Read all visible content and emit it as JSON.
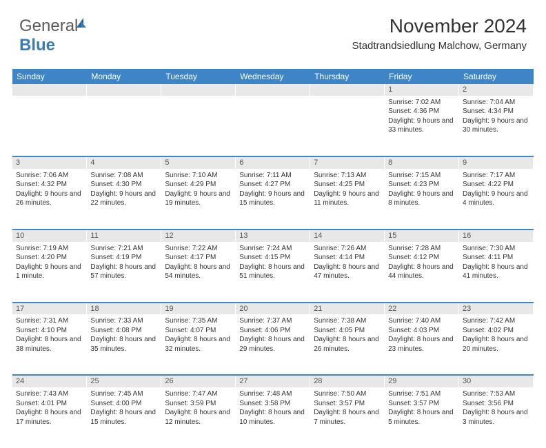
{
  "logo": {
    "part1": "General",
    "part2": "Blue"
  },
  "title": "November 2024",
  "location": "Stadtrandsiedlung Malchow, Germany",
  "colors": {
    "header_bg": "#3d85c6",
    "header_text": "#ffffff",
    "daynum_bg": "#e8e8e8",
    "row_border": "#3d85c6",
    "text": "#333333",
    "logo_gray": "#5a5a5a",
    "logo_blue": "#3a7ab8"
  },
  "weekdays": [
    "Sunday",
    "Monday",
    "Tuesday",
    "Wednesday",
    "Thursday",
    "Friday",
    "Saturday"
  ],
  "weeks": [
    {
      "nums": [
        "",
        "",
        "",
        "",
        "",
        "1",
        "2"
      ],
      "cells": [
        "",
        "",
        "",
        "",
        "",
        "Sunrise: 7:02 AM\nSunset: 4:36 PM\nDaylight: 9 hours and 33 minutes.",
        "Sunrise: 7:04 AM\nSunset: 4:34 PM\nDaylight: 9 hours and 30 minutes."
      ]
    },
    {
      "nums": [
        "3",
        "4",
        "5",
        "6",
        "7",
        "8",
        "9"
      ],
      "cells": [
        "Sunrise: 7:06 AM\nSunset: 4:32 PM\nDaylight: 9 hours and 26 minutes.",
        "Sunrise: 7:08 AM\nSunset: 4:30 PM\nDaylight: 9 hours and 22 minutes.",
        "Sunrise: 7:10 AM\nSunset: 4:29 PM\nDaylight: 9 hours and 19 minutes.",
        "Sunrise: 7:11 AM\nSunset: 4:27 PM\nDaylight: 9 hours and 15 minutes.",
        "Sunrise: 7:13 AM\nSunset: 4:25 PM\nDaylight: 9 hours and 11 minutes.",
        "Sunrise: 7:15 AM\nSunset: 4:23 PM\nDaylight: 9 hours and 8 minutes.",
        "Sunrise: 7:17 AM\nSunset: 4:22 PM\nDaylight: 9 hours and 4 minutes."
      ]
    },
    {
      "nums": [
        "10",
        "11",
        "12",
        "13",
        "14",
        "15",
        "16"
      ],
      "cells": [
        "Sunrise: 7:19 AM\nSunset: 4:20 PM\nDaylight: 9 hours and 1 minute.",
        "Sunrise: 7:21 AM\nSunset: 4:19 PM\nDaylight: 8 hours and 57 minutes.",
        "Sunrise: 7:22 AM\nSunset: 4:17 PM\nDaylight: 8 hours and 54 minutes.",
        "Sunrise: 7:24 AM\nSunset: 4:15 PM\nDaylight: 8 hours and 51 minutes.",
        "Sunrise: 7:26 AM\nSunset: 4:14 PM\nDaylight: 8 hours and 47 minutes.",
        "Sunrise: 7:28 AM\nSunset: 4:12 PM\nDaylight: 8 hours and 44 minutes.",
        "Sunrise: 7:30 AM\nSunset: 4:11 PM\nDaylight: 8 hours and 41 minutes."
      ]
    },
    {
      "nums": [
        "17",
        "18",
        "19",
        "20",
        "21",
        "22",
        "23"
      ],
      "cells": [
        "Sunrise: 7:31 AM\nSunset: 4:10 PM\nDaylight: 8 hours and 38 minutes.",
        "Sunrise: 7:33 AM\nSunset: 4:08 PM\nDaylight: 8 hours and 35 minutes.",
        "Sunrise: 7:35 AM\nSunset: 4:07 PM\nDaylight: 8 hours and 32 minutes.",
        "Sunrise: 7:37 AM\nSunset: 4:06 PM\nDaylight: 8 hours and 29 minutes.",
        "Sunrise: 7:38 AM\nSunset: 4:05 PM\nDaylight: 8 hours and 26 minutes.",
        "Sunrise: 7:40 AM\nSunset: 4:03 PM\nDaylight: 8 hours and 23 minutes.",
        "Sunrise: 7:42 AM\nSunset: 4:02 PM\nDaylight: 8 hours and 20 minutes."
      ]
    },
    {
      "nums": [
        "24",
        "25",
        "26",
        "27",
        "28",
        "29",
        "30"
      ],
      "cells": [
        "Sunrise: 7:43 AM\nSunset: 4:01 PM\nDaylight: 8 hours and 17 minutes.",
        "Sunrise: 7:45 AM\nSunset: 4:00 PM\nDaylight: 8 hours and 15 minutes.",
        "Sunrise: 7:47 AM\nSunset: 3:59 PM\nDaylight: 8 hours and 12 minutes.",
        "Sunrise: 7:48 AM\nSunset: 3:58 PM\nDaylight: 8 hours and 10 minutes.",
        "Sunrise: 7:50 AM\nSunset: 3:57 PM\nDaylight: 8 hours and 7 minutes.",
        "Sunrise: 7:51 AM\nSunset: 3:57 PM\nDaylight: 8 hours and 5 minutes.",
        "Sunrise: 7:53 AM\nSunset: 3:56 PM\nDaylight: 8 hours and 3 minutes."
      ]
    }
  ]
}
